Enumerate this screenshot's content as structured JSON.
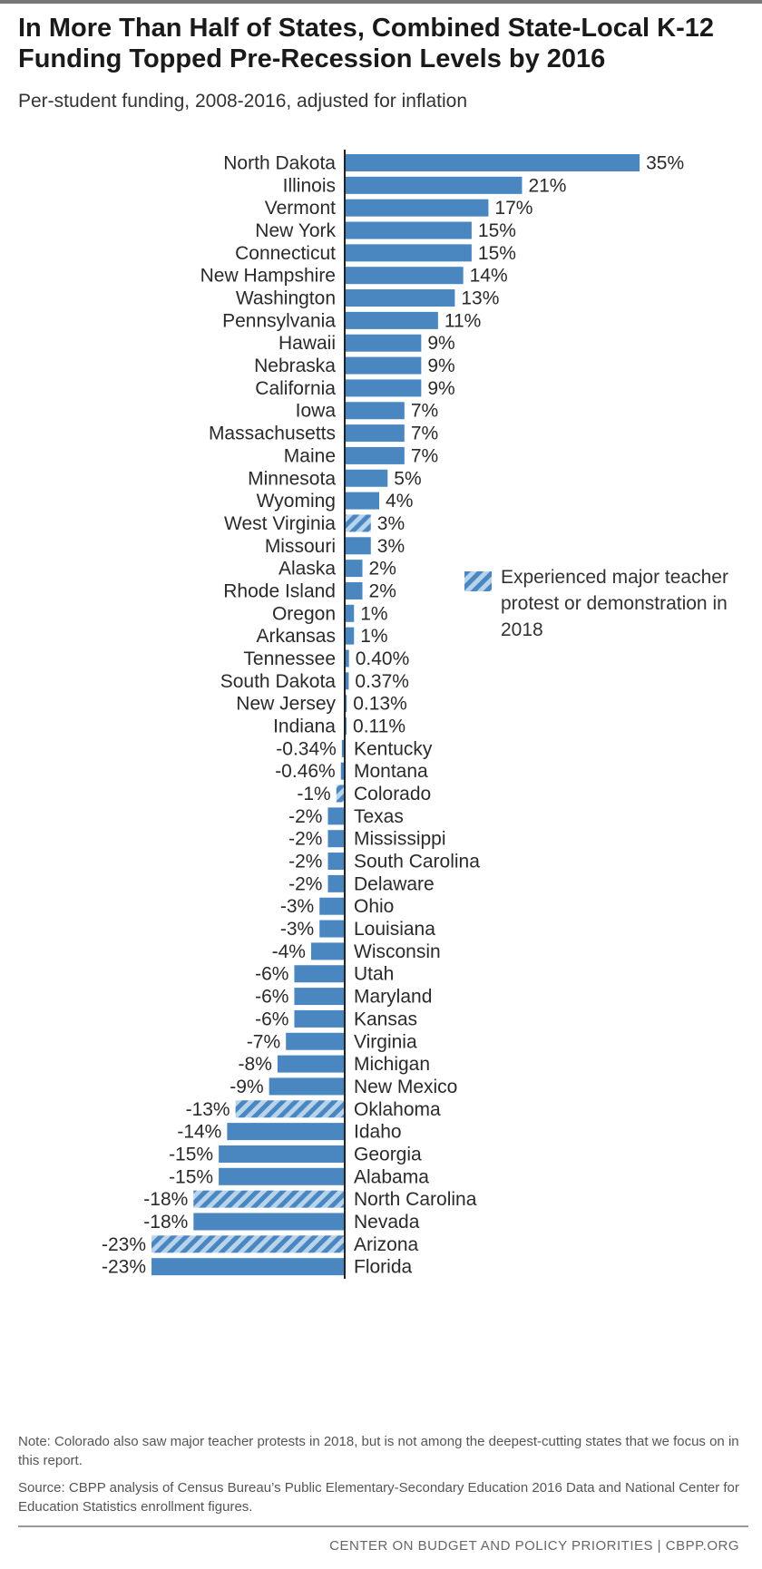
{
  "title": "In More Than Half of States, Combined State-Local K-12 Funding Topped Pre-Recession Levels by 2016",
  "subtitle": "Per-student funding, 2008-2016, adjusted for inflation",
  "legend": {
    "label": "Experienced major teacher protest or demonstration in 2018"
  },
  "note": "Note: Colorado also saw major teacher protests in 2018, but is not among the deepest-cutting states that we focus on in this report.",
  "source": "Source: CBPP analysis of Census Bureau’s Public Elementary-Secondary Education 2016 Data and National Center for Education Statistics enrollment figures.",
  "footer": "CENTER ON BUDGET AND POLICY PRIORITIES | CBPP.ORG",
  "colors": {
    "bar": "#4a86c0",
    "stripe_light": "#b8d3ec",
    "axis": "#222222"
  },
  "chart_data": {
    "type": "bar",
    "orientation": "horizontal",
    "unit": "%",
    "categories": [
      "North Dakota",
      "Illinois",
      "Vermont",
      "New York",
      "Connecticut",
      "New Hampshire",
      "Washington",
      "Pennsylvania",
      "Hawaii",
      "Nebraska",
      "California",
      "Iowa",
      "Massachusetts",
      "Maine",
      "Minnesota",
      "Wyoming",
      "West Virginia",
      "Missouri",
      "Alaska",
      "Rhode Island",
      "Oregon",
      "Arkansas",
      "Tennessee",
      "South Dakota",
      "New Jersey",
      "Indiana",
      "Kentucky",
      "Montana",
      "Colorado",
      "Texas",
      "Mississippi",
      "South Carolina",
      "Delaware",
      "Ohio",
      "Louisiana",
      "Wisconsin",
      "Utah",
      "Maryland",
      "Kansas",
      "Virginia",
      "Michigan",
      "New Mexico",
      "Oklahoma",
      "Idaho",
      "Georgia",
      "Alabama",
      "North Carolina",
      "Nevada",
      "Arizona",
      "Florida"
    ],
    "values": [
      35,
      21,
      17,
      15,
      15,
      14,
      13,
      11,
      9,
      9,
      9,
      7,
      7,
      7,
      5,
      4,
      3,
      3,
      2,
      2,
      1,
      1,
      0.4,
      0.37,
      0.13,
      0.11,
      -0.34,
      -0.46,
      -1,
      -2,
      -2,
      -2,
      -2,
      -3,
      -3,
      -4,
      -6,
      -6,
      -6,
      -7,
      -8,
      -9,
      -13,
      -14,
      -15,
      -15,
      -18,
      -18,
      -23,
      -23
    ],
    "labels": [
      "35%",
      "21%",
      "17%",
      "15%",
      "15%",
      "14%",
      "13%",
      "11%",
      "9%",
      "9%",
      "9%",
      "7%",
      "7%",
      "7%",
      "5%",
      "4%",
      "3%",
      "3%",
      "2%",
      "2%",
      "1%",
      "1%",
      "0.40%",
      "0.37%",
      "0.13%",
      "0.11%",
      "-0.34%",
      "-0.46%",
      "-1%",
      "-2%",
      "-2%",
      "-2%",
      "-2%",
      "-3%",
      "-3%",
      "-4%",
      "-6%",
      "-6%",
      "-6%",
      "-7%",
      "-8%",
      "-9%",
      "-13%",
      "-14%",
      "-15%",
      "-15%",
      "-18%",
      "-18%",
      "-23%",
      "-23%"
    ],
    "protest_states": [
      "West Virginia",
      "Colorado",
      "Oklahoma",
      "North Carolina",
      "Arizona"
    ],
    "xlim": [
      -23,
      35
    ],
    "grid": false,
    "legend_position": "right"
  }
}
